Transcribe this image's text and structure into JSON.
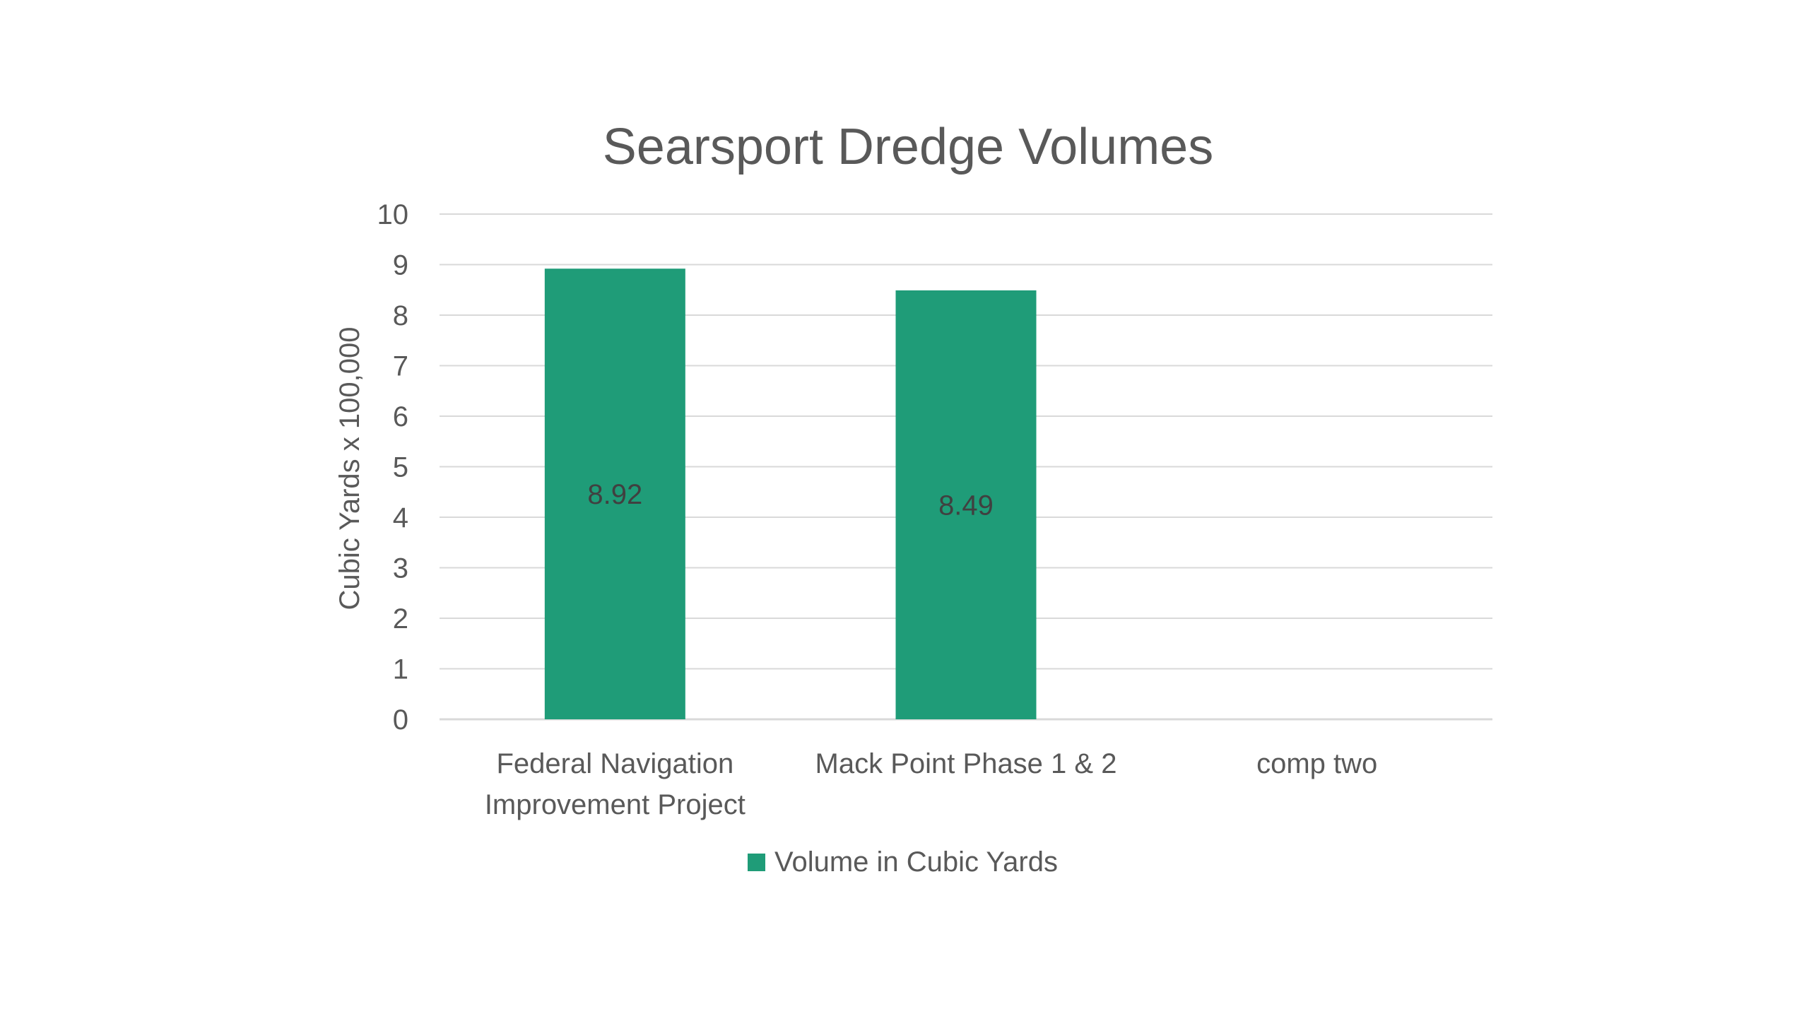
{
  "chart_data": {
    "type": "bar",
    "title": "Searsport Dredge Volumes",
    "ylabel": "Cubic Yards x 100,000",
    "xlabel": "",
    "categories": [
      [
        "Federal Navigation",
        "Improvement Project"
      ],
      [
        "Mack Point Phase 1 & 2"
      ],
      [
        "comp two"
      ]
    ],
    "series": [
      {
        "name": "Volume in Cubic Yards",
        "color": "#1f9c78",
        "values": [
          8.92,
          8.49,
          null
        ],
        "data_labels": [
          "8.92",
          "8.49",
          ""
        ]
      }
    ],
    "ylim": [
      0,
      10
    ],
    "yticks": [
      "0",
      "1",
      "2",
      "3",
      "4",
      "5",
      "6",
      "7",
      "8",
      "9",
      "10"
    ],
    "grid": true,
    "legend_position": "bottom"
  }
}
